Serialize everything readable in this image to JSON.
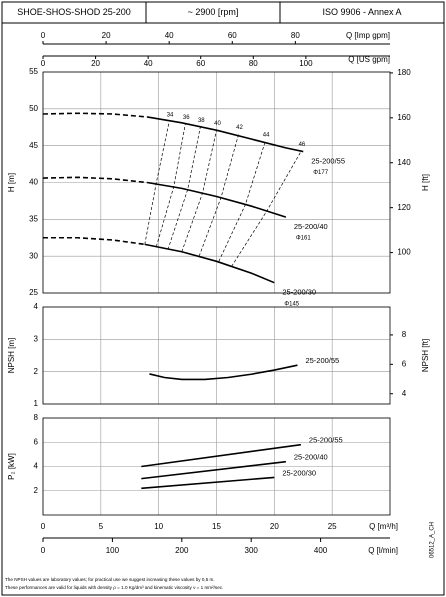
{
  "header": {
    "model": "SHOE-SHOS-SHOD 25-200",
    "speed": "~ 2900 [rpm]",
    "standard": "ISO 9906 - Annex A"
  },
  "top_axes": [
    {
      "label": "Q [Imp gpm]",
      "xlim": [
        0,
        110
      ],
      "xticks": [
        0,
        20,
        40,
        60,
        80
      ]
    },
    {
      "label": "Q [US gpm]",
      "xlim": [
        0,
        132
      ],
      "xticks": [
        0,
        20,
        40,
        60,
        80,
        100
      ]
    }
  ],
  "chart_data": [
    {
      "type": "line",
      "ylabel": "H [m]",
      "y2label": "H [ft]",
      "xlim": [
        0,
        30
      ],
      "ylim": [
        25,
        55
      ],
      "yticks": [
        25,
        30,
        35,
        40,
        45,
        50,
        55
      ],
      "y2lim": [
        82,
        180.4
      ],
      "y2ticks": [
        100,
        120,
        140,
        160,
        180
      ],
      "grid": true,
      "series": [
        {
          "name": "25-200/55",
          "diameter": "Φ177",
          "color": "#000000",
          "segments": [
            {
              "style": "dashed",
              "x": [
                0,
                3,
                6,
                9
              ],
              "values": [
                49.3,
                49.4,
                49.3,
                48.9
              ]
            },
            {
              "style": "solid",
              "x": [
                9,
                12,
                15,
                18,
                21,
                22.5
              ],
              "values": [
                48.9,
                48.1,
                47.1,
                45.9,
                44.7,
                44.2
              ]
            }
          ]
        },
        {
          "name": "25-200/40",
          "diameter": "Φ161",
          "color": "#000000",
          "segments": [
            {
              "style": "dashed",
              "x": [
                0,
                3,
                6,
                9
              ],
              "values": [
                40.6,
                40.7,
                40.5,
                40.0
              ]
            },
            {
              "style": "solid",
              "x": [
                9,
                12,
                15,
                18,
                21
              ],
              "values": [
                40.0,
                39.2,
                38.1,
                36.8,
                35.3
              ]
            }
          ]
        },
        {
          "name": "25-200/30",
          "diameter": "Φ145",
          "color": "#000000",
          "segments": [
            {
              "style": "dashed",
              "x": [
                0,
                3,
                6,
                8.8
              ],
              "values": [
                32.5,
                32.5,
                32.2,
                31.6
              ]
            },
            {
              "style": "solid",
              "x": [
                8.8,
                12,
                15,
                18,
                20
              ],
              "values": [
                31.6,
                30.6,
                29.3,
                27.7,
                26.4
              ]
            }
          ]
        }
      ],
      "iso_lines": [
        {
          "label": "34",
          "x": [
            8.8,
            9.8,
            10.9
          ],
          "values": [
            31.6,
            40.0,
            48.2
          ]
        },
        {
          "label": "36",
          "x": [
            9.8,
            11.3,
            12.3
          ],
          "values": [
            31.3,
            39.4,
            47.9
          ]
        },
        {
          "label": "38",
          "x": [
            10.8,
            12.5,
            13.6
          ],
          "values": [
            30.9,
            39.0,
            47.5
          ]
        },
        {
          "label": "40",
          "x": [
            12.0,
            13.8,
            15.0
          ],
          "values": [
            30.6,
            38.6,
            47.1
          ]
        },
        {
          "label": "42",
          "x": [
            13.5,
            15.4,
            16.9
          ],
          "values": [
            30.0,
            38.0,
            46.5
          ]
        },
        {
          "label": "44",
          "x": [
            15.2,
            17.5,
            19.2
          ],
          "values": [
            29.3,
            37.0,
            45.5
          ]
        },
        {
          "label": "46",
          "x": [
            16.3,
            19.3,
            22.3
          ],
          "values": [
            28.6,
            36.0,
            44.2
          ]
        }
      ]
    },
    {
      "type": "line",
      "ylabel": "NPSH [m]",
      "y2label": "NPSH [ft]",
      "xlim": [
        0,
        30
      ],
      "ylim": [
        1,
        4
      ],
      "yticks": [
        1,
        2,
        3,
        4
      ],
      "y2lim": [
        3.3,
        9.9
      ],
      "y2ticks": [
        4,
        6,
        8
      ],
      "grid": true,
      "series": [
        {
          "name": "25-200/55",
          "color": "#000000",
          "segments": [
            {
              "style": "solid",
              "x": [
                9.2,
                10.5,
                12,
                14,
                16,
                18,
                20,
                22
              ],
              "values": [
                1.93,
                1.82,
                1.76,
                1.76,
                1.82,
                1.92,
                2.05,
                2.2
              ]
            }
          ]
        }
      ]
    },
    {
      "type": "line",
      "ylabel": "P₂ [kW]",
      "xlim": [
        0,
        30
      ],
      "ylim": [
        0,
        8
      ],
      "yticks": [
        2,
        4,
        6,
        8
      ],
      "grid": true,
      "series": [
        {
          "name": "25-200/55",
          "color": "#000000",
          "segments": [
            {
              "style": "solid",
              "x": [
                8.5,
                22.3
              ],
              "values": [
                4.0,
                5.8
              ]
            }
          ]
        },
        {
          "name": "25-200/40",
          "color": "#000000",
          "segments": [
            {
              "style": "solid",
              "x": [
                8.5,
                21
              ],
              "values": [
                3.0,
                4.4
              ]
            }
          ]
        },
        {
          "name": "25-200/30",
          "color": "#000000",
          "segments": [
            {
              "style": "solid",
              "x": [
                8.5,
                20
              ],
              "values": [
                2.2,
                3.1
              ]
            }
          ]
        }
      ]
    }
  ],
  "bottom_axes": [
    {
      "label": "Q [m³/h]",
      "xlim": [
        0,
        30
      ],
      "xticks": [
        0,
        5,
        10,
        15,
        20,
        25
      ]
    },
    {
      "label": "Q [l/min]",
      "xlim": [
        0,
        500
      ],
      "xticks": [
        0,
        100,
        200,
        300,
        400
      ]
    }
  ],
  "notes": [
    "The NPSH values are laboratory values; for practical use we suggest increasing these values by 0,5 m.",
    "These performances are valid for liquids with density ρ = 1.0 Kg/dm³ and kinematic viscosity ν = 1 mm²/sec."
  ],
  "drawing_code": "06512_A_CH"
}
